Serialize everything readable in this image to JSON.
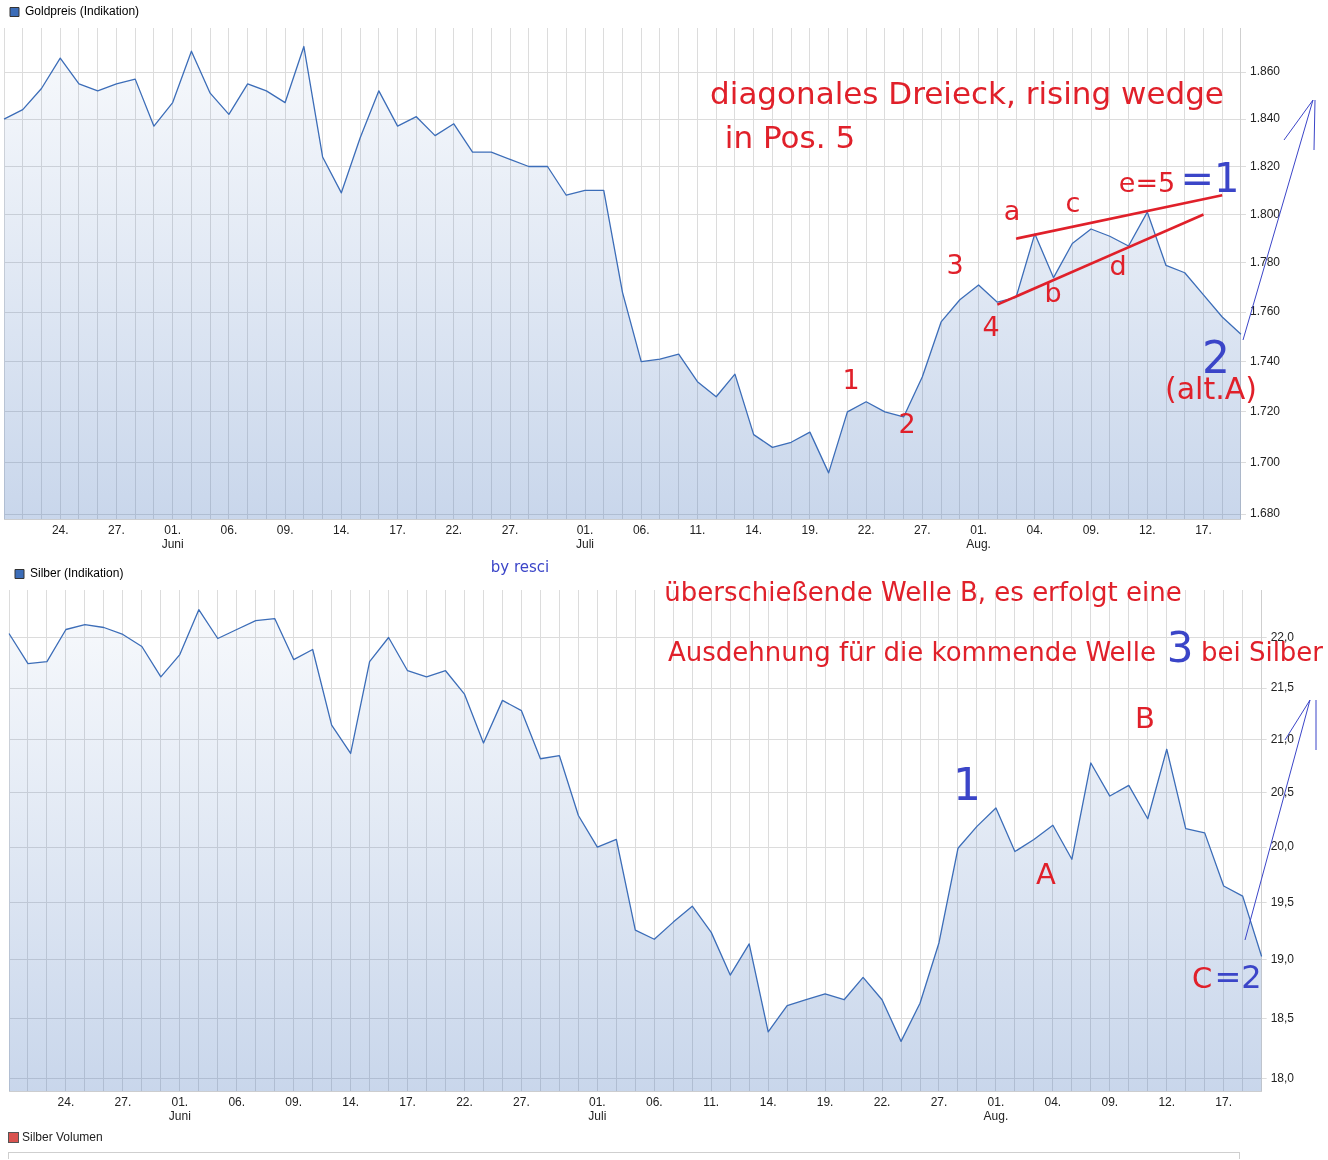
{
  "chart_data": [
    {
      "type": "area",
      "categories": [
        null,
        null,
        null,
        "24.",
        null,
        null,
        "27.",
        null,
        null,
        "01. Juni",
        null,
        null,
        "06.",
        null,
        null,
        "09.",
        null,
        null,
        "14.",
        null,
        null,
        "17.",
        null,
        null,
        "22.",
        null,
        null,
        "27.",
        null,
        null,
        null,
        "01. Juli",
        null,
        null,
        "06.",
        null,
        null,
        "11.",
        null,
        null,
        "14.",
        null,
        null,
        "19.",
        null,
        null,
        "22.",
        null,
        null,
        "27.",
        null,
        null,
        "01. Aug.",
        null,
        null,
        "04.",
        null,
        null,
        "09.",
        null,
        null,
        "12.",
        null,
        null,
        "17.",
        null,
        null
      ],
      "series": [
        {
          "name": "Goldpreis (Indikation)",
          "color": "#3c6db8",
          "values": [
            1840,
            1844,
            1853,
            1866,
            1855,
            1852,
            1855,
            1857,
            1837,
            1847,
            1869,
            1851,
            1842,
            1855,
            1852,
            1847,
            1871,
            1824,
            1809,
            1832,
            1852,
            1837,
            1841,
            1833,
            1838,
            1826,
            1826,
            1823,
            1820,
            1820,
            1808,
            1810,
            1810,
            1768,
            1740,
            1741,
            1743,
            1732,
            1726,
            1735,
            1711,
            1706,
            1708,
            1712,
            1696,
            1720,
            1724,
            1720,
            1718,
            1734,
            1756,
            1765,
            1771,
            1764,
            1766,
            1792,
            1774,
            1788,
            1794,
            1791,
            1787,
            1801,
            1779,
            1776,
            1767,
            1758,
            1751
          ]
        },
        {
          "type": "line",
          "color": "#e0202a",
          "values": [
            null,
            null,
            null,
            null,
            null,
            null,
            null,
            null,
            null,
            null,
            null,
            null,
            null,
            null,
            null,
            null,
            null,
            null,
            null,
            null,
            null,
            null,
            null,
            null,
            null,
            null,
            null,
            null,
            null,
            null,
            null,
            null,
            null,
            null,
            null,
            null,
            null,
            null,
            null,
            null,
            null,
            null,
            null,
            null,
            null,
            null,
            null,
            null,
            null,
            null,
            null,
            null,
            null,
            null,
            1790,
            null,
            null,
            null,
            null,
            null,
            null,
            null,
            null,
            null,
            null,
            1808,
            null
          ]
        },
        {
          "type": "line",
          "color": "#e0202a",
          "values": [
            null,
            null,
            null,
            null,
            null,
            null,
            null,
            null,
            null,
            null,
            null,
            null,
            null,
            null,
            null,
            null,
            null,
            null,
            null,
            null,
            null,
            null,
            null,
            null,
            null,
            null,
            null,
            null,
            null,
            null,
            null,
            null,
            null,
            null,
            null,
            null,
            null,
            null,
            null,
            null,
            null,
            null,
            null,
            null,
            null,
            null,
            null,
            null,
            null,
            null,
            null,
            null,
            null,
            1763,
            null,
            null,
            null,
            null,
            null,
            null,
            null,
            null,
            null,
            null,
            1800,
            null,
            null
          ]
        }
      ],
      "ylim": [
        1678,
        1879
      ],
      "yticks": [
        {
          "value": 1680,
          "label": "1.680"
        },
        {
          "value": 1700,
          "label": "1.700"
        },
        {
          "value": 1720,
          "label": "1.720"
        },
        {
          "value": 1740,
          "label": "1.740"
        },
        {
          "value": 1760,
          "label": "1.760"
        },
        {
          "value": 1780,
          "label": "1.780"
        },
        {
          "value": 1800,
          "label": "1.800"
        },
        {
          "value": 1820,
          "label": "1.820"
        },
        {
          "value": 1840,
          "label": "1.840"
        },
        {
          "value": 1860,
          "label": "1.860"
        }
      ],
      "log": true,
      "grid": true,
      "legend": "top left",
      "annotations": [
        "diagonales Dreieck, rising wedge",
        "in Pos. 5",
        "e=5",
        "=1",
        "a",
        "c",
        "b",
        "d",
        "3",
        "4",
        "1",
        "2",
        "2",
        "(alt.A)"
      ]
    },
    {
      "type": "area",
      "categories": [
        null,
        null,
        null,
        "24.",
        null,
        null,
        "27.",
        null,
        null,
        "01. Juni",
        null,
        null,
        "06.",
        null,
        null,
        "09.",
        null,
        null,
        "14.",
        null,
        null,
        "17.",
        null,
        null,
        "22.",
        null,
        null,
        "27.",
        null,
        null,
        null,
        "01. Juli",
        null,
        null,
        "06.",
        null,
        null,
        "11.",
        null,
        null,
        "14.",
        null,
        null,
        "19.",
        null,
        null,
        "22.",
        null,
        null,
        "27.",
        null,
        null,
        "01. Aug.",
        null,
        null,
        "04.",
        null,
        null,
        "09.",
        null,
        null,
        "12.",
        null,
        null,
        "17.",
        null,
        null
      ],
      "series": [
        {
          "name": "Silber (Indikation)",
          "color": "#3c6db8",
          "values": [
            22.04,
            21.74,
            21.76,
            22.08,
            22.13,
            22.1,
            22.03,
            21.91,
            21.61,
            21.83,
            22.28,
            21.99,
            22.08,
            22.17,
            22.19,
            21.78,
            21.88,
            21.14,
            20.87,
            21.76,
            22.0,
            21.67,
            21.61,
            21.67,
            21.44,
            20.97,
            21.38,
            21.28,
            20.82,
            20.85,
            20.29,
            20.0,
            20.07,
            19.26,
            19.18,
            19.33,
            19.47,
            19.24,
            18.87,
            19.14,
            18.39,
            18.61,
            18.66,
            18.71,
            18.66,
            18.85,
            18.66,
            18.31,
            18.63,
            19.15,
            19.99,
            20.19,
            20.36,
            19.96,
            20.07,
            20.2,
            19.89,
            20.78,
            20.47,
            20.57,
            20.26,
            20.91,
            20.17,
            20.13,
            19.65,
            19.56,
            19.03
          ]
        }
      ],
      "ylim": [
        17.91,
        22.48
      ],
      "yticks": [
        {
          "value": 18,
          "label": "18,0"
        },
        {
          "value": 18.5,
          "label": "18,5"
        },
        {
          "value": 19,
          "label": "19,0"
        },
        {
          "value": 19.5,
          "label": "19,5"
        },
        {
          "value": 20,
          "label": "20,0"
        },
        {
          "value": 20.5,
          "label": "20,5"
        },
        {
          "value": 21,
          "label": "21,0"
        },
        {
          "value": 21.5,
          "label": "21,5"
        },
        {
          "value": 22,
          "label": "22,0"
        }
      ],
      "log": true,
      "grid": true,
      "legend": "top left",
      "annotations": [
        "überschießende Welle B, es erfolgt eine",
        "Ausdehnung für die kommende Welle",
        "3",
        "bei Silber",
        "1",
        "A",
        "B",
        "C",
        "=2",
        "by resci",
        "Silber Volumen"
      ]
    }
  ]
}
